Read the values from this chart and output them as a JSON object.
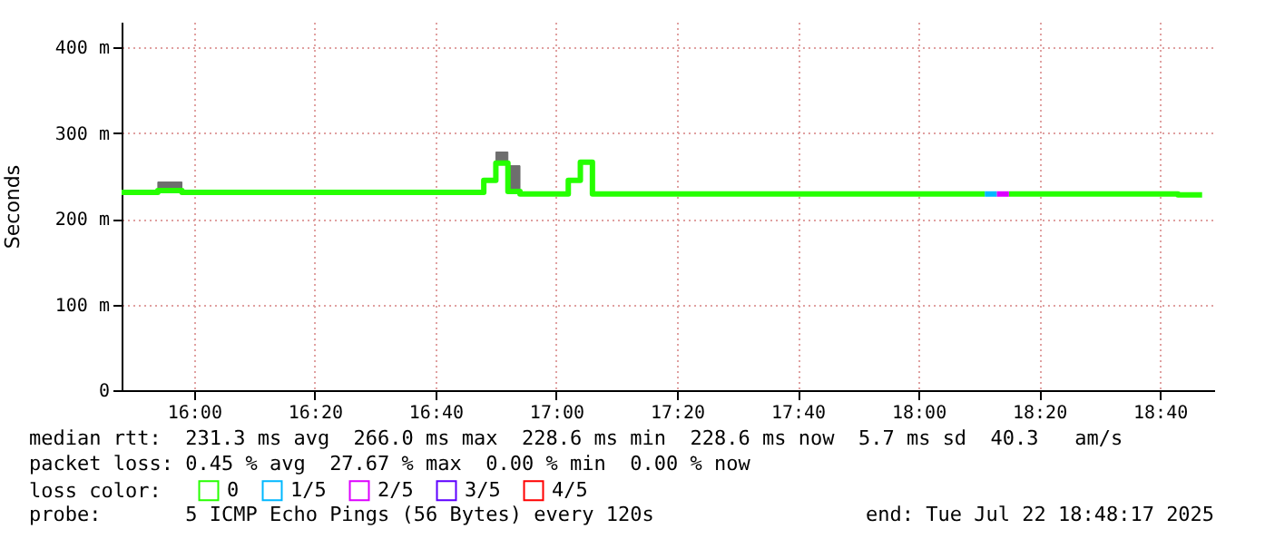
{
  "chart_data": {
    "type": "step",
    "ylabel": "Seconds",
    "legend_title": "loss color:",
    "legend": "bottom",
    "grid": true,
    "xlim": [
      "2025-07-22T15:48",
      "2025-07-22T18:49"
    ],
    "xticks": [
      {
        "value": "2025-07-22T16:00",
        "label": "16:00"
      },
      {
        "value": "2025-07-22T16:20",
        "label": "16:20"
      },
      {
        "value": "2025-07-22T16:40",
        "label": "16:40"
      },
      {
        "value": "2025-07-22T17:00",
        "label": "17:00"
      },
      {
        "value": "2025-07-22T17:20",
        "label": "17:20"
      },
      {
        "value": "2025-07-22T17:40",
        "label": "17:40"
      },
      {
        "value": "2025-07-22T18:00",
        "label": "18:00"
      },
      {
        "value": "2025-07-22T18:20",
        "label": "18:20"
      },
      {
        "value": "2025-07-22T18:40",
        "label": "18:40"
      }
    ],
    "ylim": [
      0,
      430
    ],
    "yticks": [
      0,
      {
        "value": 100,
        "label": "100 m"
      },
      {
        "value": 200,
        "label": "200 m"
      },
      {
        "value": 300,
        "label": "300 m"
      },
      {
        "value": 400,
        "label": "400 m"
      }
    ],
    "series": [
      {
        "name": "0",
        "color": "#26ff00",
        "x": [
          "2025-07-22T15:48",
          "2025-07-22T15:54",
          "2025-07-22T15:58",
          "2025-07-22T16:48",
          "2025-07-22T16:50",
          "2025-07-22T16:52",
          "2025-07-22T16:54",
          "2025-07-22T17:02",
          "2025-07-22T17:04",
          "2025-07-22T17:06",
          "2025-07-22T18:11",
          "2025-07-22T18:12",
          "2025-07-22T18:15",
          "2025-07-22T18:43",
          "2025-07-22T18:47"
        ],
        "values": [
          231,
          233,
          231,
          245,
          265,
          232,
          229,
          245,
          266,
          229,
          229,
          null,
          229,
          228,
          228
        ],
        "lower": [
          null,
          231,
          231,
          null,
          265,
          230,
          230,
          null,
          null,
          null,
          null,
          null,
          null,
          null,
          null
        ],
        "upper": [
          null,
          243,
          243,
          null,
          278,
          262,
          262,
          null,
          null,
          null,
          null,
          null,
          null,
          null,
          null
        ]
      },
      {
        "name": "1/5",
        "color": "#00b8ff",
        "x": [
          "2025-07-22T18:11",
          "2025-07-22T18:13"
        ],
        "values": [
          229,
          229
        ]
      },
      {
        "name": "2/5",
        "color": "#dd00ff",
        "x": [
          "2025-07-22T18:13",
          "2025-07-22T18:15"
        ],
        "values": [
          229,
          229
        ]
      },
      {
        "name": "3/5",
        "color": "#5e00ff"
      },
      {
        "name": "4/5",
        "color": "#ff0000"
      }
    ],
    "annotations": [
      "median rtt:  231.3 ms avg  266.0 ms max  228.6 ms min  228.6 ms now  5.7 ms sd  40.3   am/s",
      "packet loss: 0.45 % avg  27.67 % max  0.00 % min  0.00 % now",
      "probe:       5 ICMP Echo Pings (56 Bytes) every 120s",
      "end: Tue Jul 22 18:48:17 2025"
    ]
  }
}
